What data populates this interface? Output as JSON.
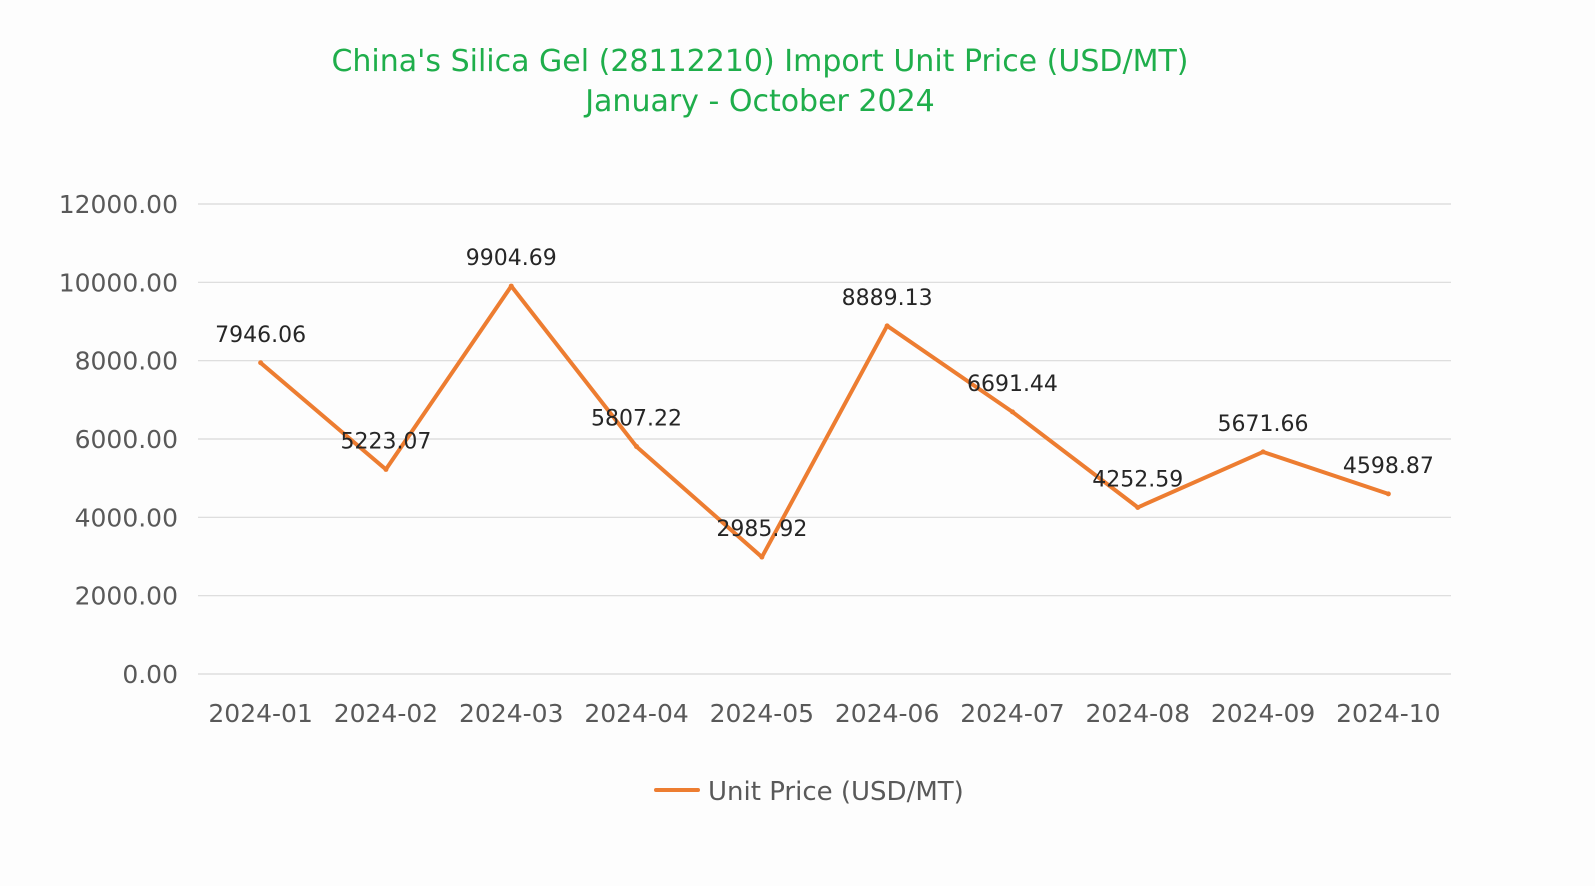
{
  "chart_data": {
    "type": "line",
    "title": "China's Silica Gel (28112210) Import Unit Price (USD/MT)",
    "subtitle": "January - October 2024",
    "categories": [
      "2024-01",
      "2024-02",
      "2024-03",
      "2024-04",
      "2024-05",
      "2024-06",
      "2024-07",
      "2024-08",
      "2024-09",
      "2024-10"
    ],
    "series": [
      {
        "name": "Unit Price (USD/MT)",
        "values": [
          7946.06,
          5223.07,
          9904.69,
          5807.22,
          2985.92,
          8889.13,
          6691.44,
          4252.59,
          5671.66,
          4598.87
        ],
        "labels": [
          "7946.06",
          "5223.07",
          "9904.69",
          "5807.22",
          "2985.92",
          "8889.13",
          "6691.44",
          "4252.59",
          "5671.66",
          "4598.87"
        ],
        "color": "#ed7d31"
      }
    ],
    "yticks": [
      "0.00",
      "2000.00",
      "4000.00",
      "6000.00",
      "8000.00",
      "10000.00",
      "12000.00"
    ],
    "ylim": [
      0,
      12000
    ],
    "xlabel": "",
    "ylabel": "",
    "grid": true,
    "legend": "bottom",
    "title_color": "#1fae4b",
    "grid_color": "#d9d9d9"
  }
}
